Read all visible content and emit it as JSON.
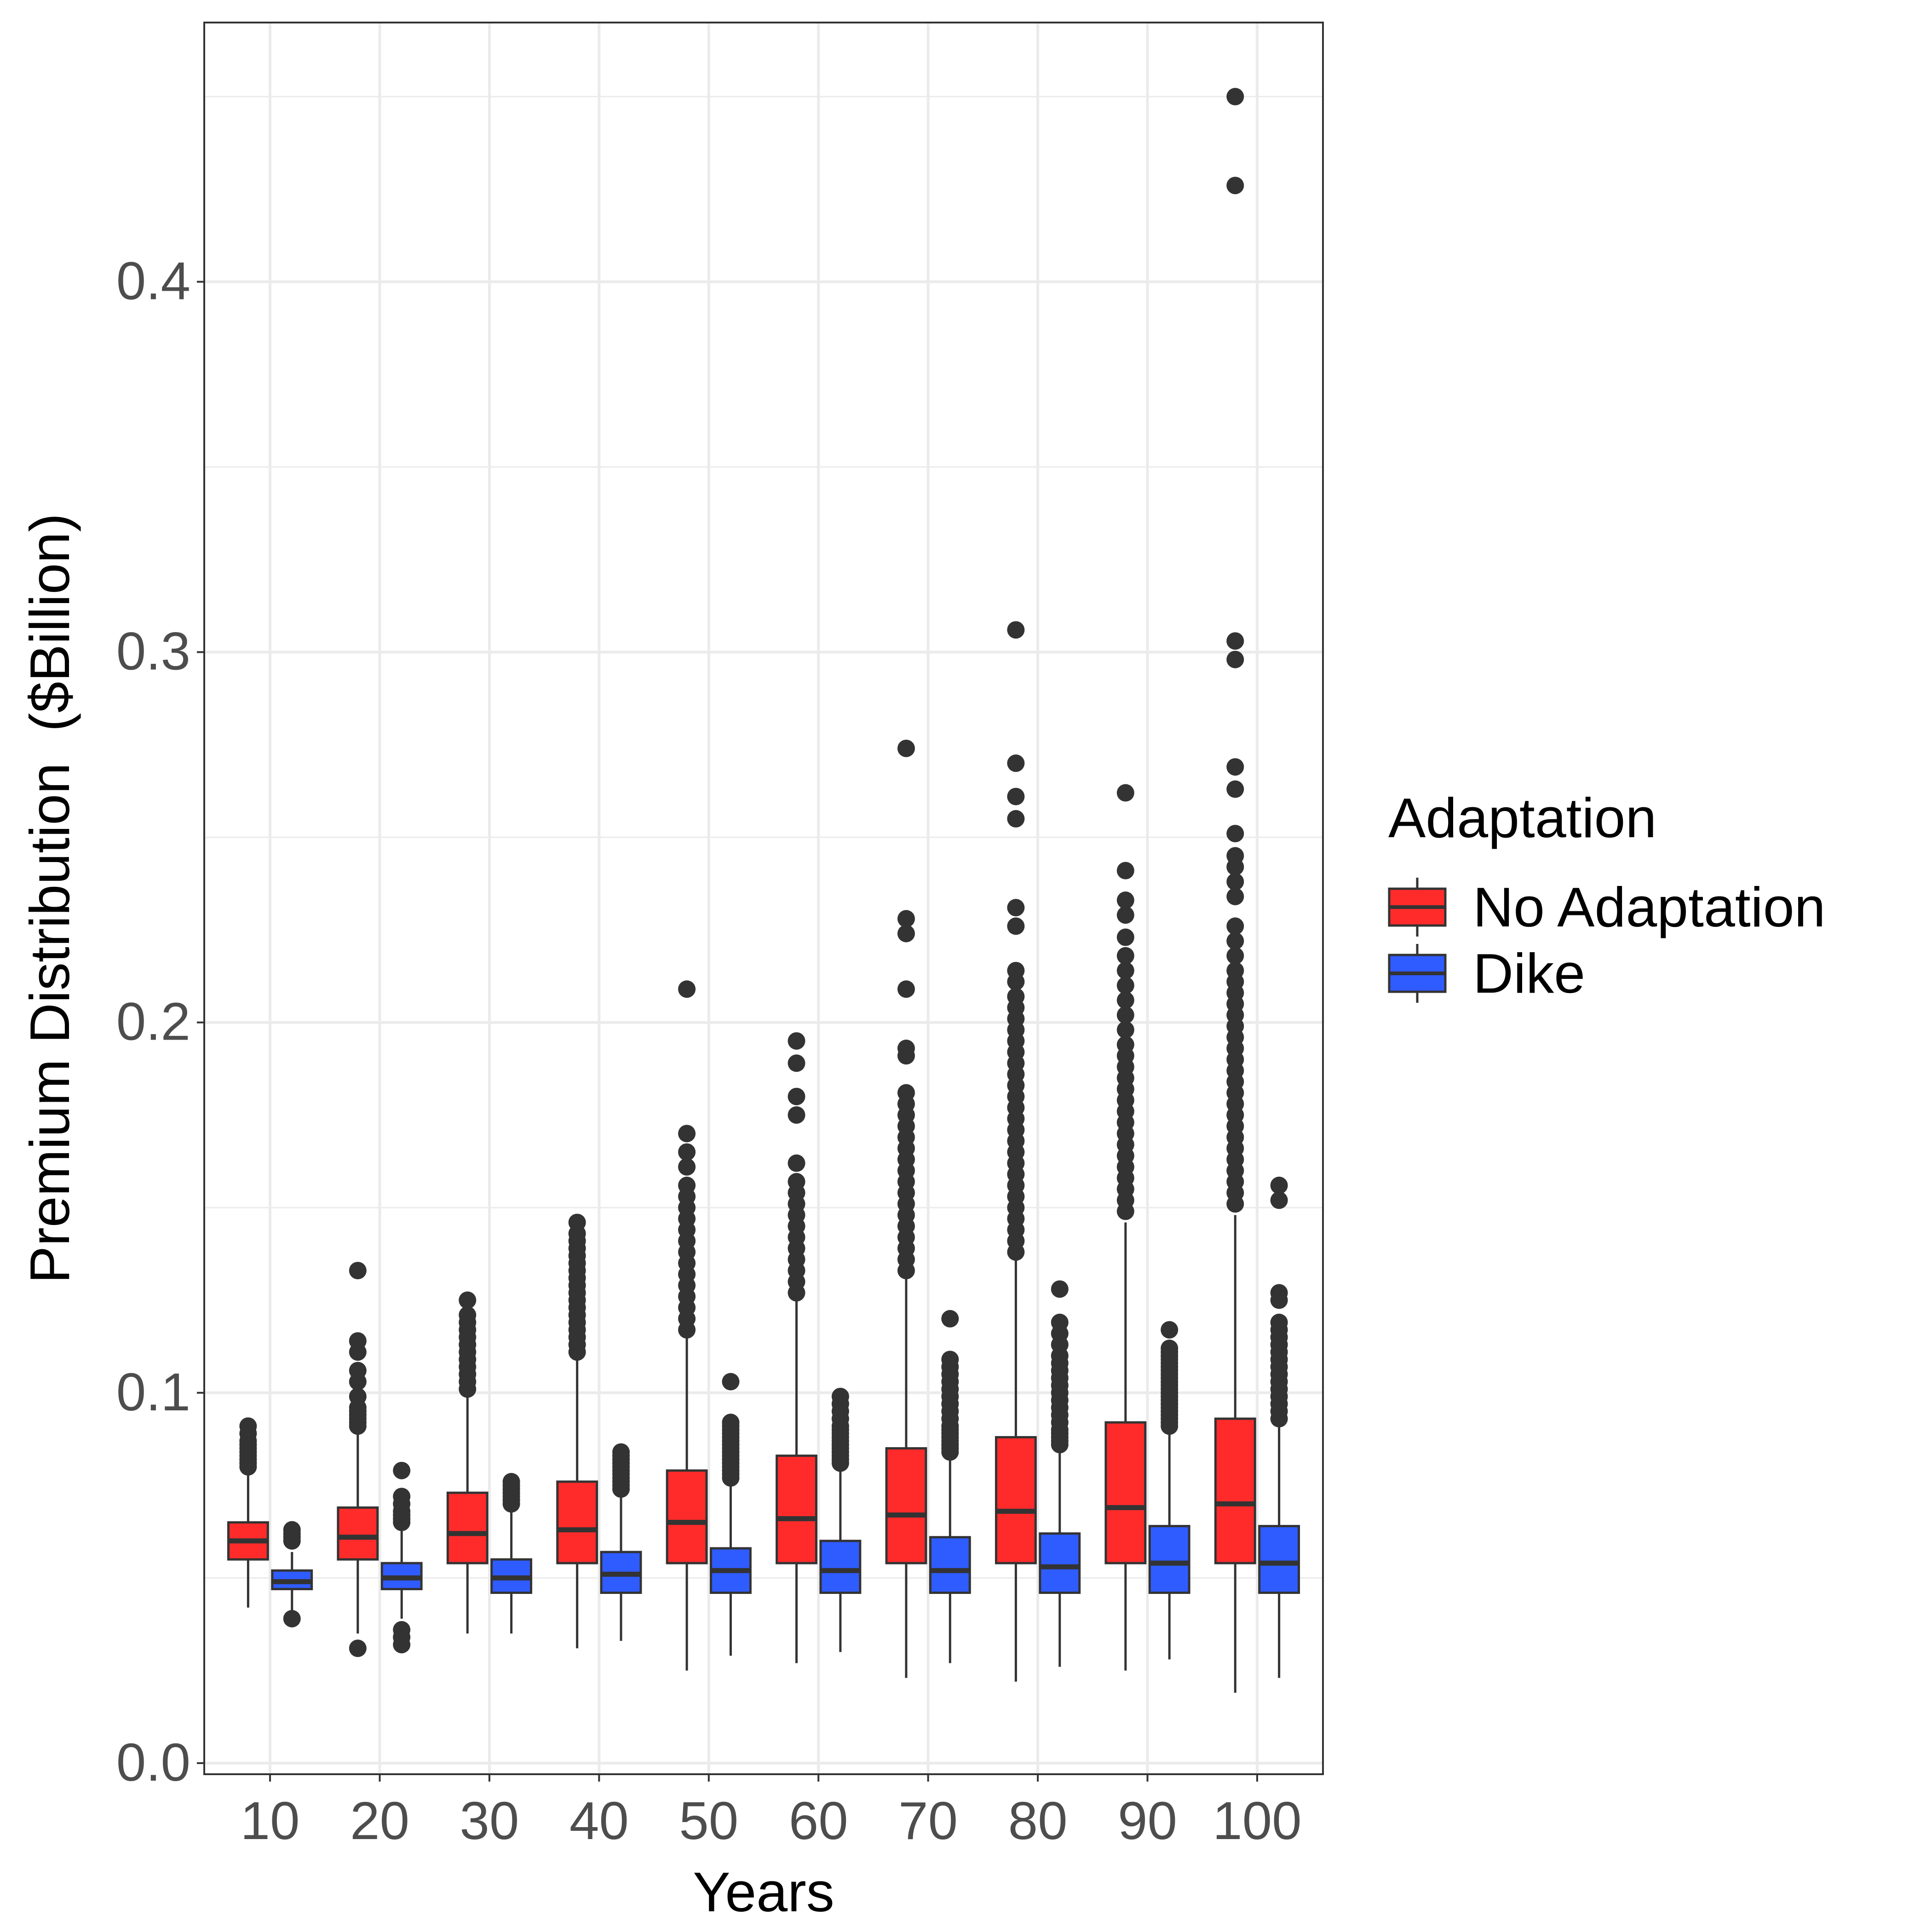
{
  "chart_data": {
    "type": "box",
    "xlabel": "Years",
    "ylabel": "Premium Distribution  ($Billion)",
    "categories": [
      "10",
      "20",
      "30",
      "40",
      "50",
      "60",
      "70",
      "80",
      "90",
      "100"
    ],
    "y_ticks": [
      "0.0",
      "0.1",
      "0.2",
      "0.3",
      "0.4"
    ],
    "ylim": [
      -0.003,
      0.47
    ],
    "grid": true,
    "legend": {
      "title": "Adaptation",
      "position": "right"
    },
    "series": [
      {
        "name": "No Adaptation",
        "color": "#ff2b2b",
        "boxes": [
          {
            "min": 0.042,
            "q1": 0.055,
            "median": 0.06,
            "q3": 0.065,
            "max": 0.079,
            "outliers": [
              0.08,
              0.081,
              0.082,
              0.083,
              0.084,
              0.085,
              0.086,
              0.087,
              0.089,
              0.091
            ]
          },
          {
            "min": 0.035,
            "q1": 0.055,
            "median": 0.061,
            "q3": 0.069,
            "max": 0.09,
            "outliers": [
              0.031,
              0.091,
              0.092,
              0.093,
              0.094,
              0.095,
              0.096,
              0.099,
              0.103,
              0.106,
              0.111,
              0.114,
              0.133
            ]
          },
          {
            "min": 0.035,
            "q1": 0.054,
            "median": 0.062,
            "q3": 0.073,
            "max": 0.1,
            "outliers": [
              0.101,
              0.103,
              0.105,
              0.107,
              0.109,
              0.111,
              0.113,
              0.115,
              0.117,
              0.119,
              0.121,
              0.125
            ]
          },
          {
            "min": 0.031,
            "q1": 0.054,
            "median": 0.063,
            "q3": 0.076,
            "max": 0.11,
            "outliers": [
              0.111,
              0.113,
              0.115,
              0.117,
              0.119,
              0.121,
              0.123,
              0.125,
              0.127,
              0.129,
              0.131,
              0.133,
              0.135,
              0.137,
              0.139,
              0.141,
              0.143,
              0.146
            ]
          },
          {
            "min": 0.025,
            "q1": 0.054,
            "median": 0.065,
            "q3": 0.079,
            "max": 0.116,
            "outliers": [
              0.117,
              0.12,
              0.123,
              0.126,
              0.129,
              0.132,
              0.135,
              0.138,
              0.141,
              0.144,
              0.147,
              0.15,
              0.153,
              0.156,
              0.161,
              0.165,
              0.17,
              0.209
            ]
          },
          {
            "min": 0.027,
            "q1": 0.054,
            "median": 0.066,
            "q3": 0.083,
            "max": 0.125,
            "outliers": [
              0.127,
              0.13,
              0.133,
              0.136,
              0.139,
              0.142,
              0.145,
              0.148,
              0.151,
              0.154,
              0.157,
              0.162,
              0.175,
              0.18,
              0.189,
              0.195
            ]
          },
          {
            "min": 0.023,
            "q1": 0.054,
            "median": 0.067,
            "q3": 0.085,
            "max": 0.131,
            "outliers": [
              0.133,
              0.136,
              0.139,
              0.142,
              0.145,
              0.148,
              0.151,
              0.154,
              0.157,
              0.16,
              0.163,
              0.166,
              0.169,
              0.172,
              0.175,
              0.178,
              0.181,
              0.191,
              0.193,
              0.209,
              0.224,
              0.228,
              0.274
            ]
          },
          {
            "min": 0.022,
            "q1": 0.054,
            "median": 0.068,
            "q3": 0.088,
            "max": 0.136,
            "outliers": [
              0.138,
              0.141,
              0.144,
              0.147,
              0.15,
              0.153,
              0.156,
              0.159,
              0.162,
              0.165,
              0.168,
              0.171,
              0.174,
              0.177,
              0.18,
              0.183,
              0.186,
              0.189,
              0.192,
              0.195,
              0.198,
              0.201,
              0.204,
              0.207,
              0.211,
              0.214,
              0.226,
              0.231,
              0.255,
              0.261,
              0.27,
              0.306
            ]
          },
          {
            "min": 0.025,
            "q1": 0.054,
            "median": 0.069,
            "q3": 0.092,
            "max": 0.146,
            "outliers": [
              0.149,
              0.152,
              0.155,
              0.158,
              0.161,
              0.164,
              0.167,
              0.17,
              0.173,
              0.176,
              0.179,
              0.182,
              0.185,
              0.188,
              0.191,
              0.194,
              0.198,
              0.202,
              0.206,
              0.21,
              0.214,
              0.218,
              0.223,
              0.229,
              0.233,
              0.241,
              0.262
            ]
          },
          {
            "min": 0.019,
            "q1": 0.054,
            "median": 0.07,
            "q3": 0.093,
            "max": 0.148,
            "outliers": [
              0.151,
              0.154,
              0.157,
              0.16,
              0.163,
              0.166,
              0.169,
              0.172,
              0.175,
              0.178,
              0.181,
              0.184,
              0.187,
              0.19,
              0.193,
              0.196,
              0.199,
              0.202,
              0.205,
              0.208,
              0.211,
              0.214,
              0.218,
              0.222,
              0.226,
              0.234,
              0.238,
              0.242,
              0.245,
              0.251,
              0.263,
              0.269,
              0.298,
              0.303,
              0.426,
              0.45
            ]
          }
        ]
      },
      {
        "name": "Dike",
        "color": "#2f5cff",
        "boxes": [
          {
            "min": 0.041,
            "q1": 0.047,
            "median": 0.049,
            "q3": 0.052,
            "max": 0.057,
            "outliers": [
              0.039,
              0.06,
              0.061,
              0.062,
              0.063
            ]
          },
          {
            "min": 0.039,
            "q1": 0.047,
            "median": 0.05,
            "q3": 0.054,
            "max": 0.064,
            "outliers": [
              0.032,
              0.034,
              0.036,
              0.065,
              0.066,
              0.067,
              0.068,
              0.07,
              0.072,
              0.079
            ]
          },
          {
            "min": 0.035,
            "q1": 0.046,
            "median": 0.05,
            "q3": 0.055,
            "max": 0.068,
            "outliers": [
              0.07,
              0.071,
              0.072,
              0.073,
              0.074,
              0.075,
              0.076
            ]
          },
          {
            "min": 0.033,
            "q1": 0.046,
            "median": 0.051,
            "q3": 0.057,
            "max": 0.072,
            "outliers": [
              0.074,
              0.075,
              0.076,
              0.077,
              0.078,
              0.079,
              0.08,
              0.081,
              0.082,
              0.083,
              0.084
            ]
          },
          {
            "min": 0.029,
            "q1": 0.046,
            "median": 0.052,
            "q3": 0.058,
            "max": 0.075,
            "outliers": [
              0.077,
              0.078,
              0.079,
              0.08,
              0.081,
              0.082,
              0.083,
              0.084,
              0.085,
              0.086,
              0.087,
              0.088,
              0.089,
              0.09,
              0.091,
              0.092,
              0.103
            ]
          },
          {
            "min": 0.03,
            "q1": 0.046,
            "median": 0.052,
            "q3": 0.06,
            "max": 0.079,
            "outliers": [
              0.081,
              0.082,
              0.083,
              0.084,
              0.085,
              0.086,
              0.087,
              0.088,
              0.089,
              0.09,
              0.091,
              0.093,
              0.095,
              0.097,
              0.099
            ]
          },
          {
            "min": 0.027,
            "q1": 0.046,
            "median": 0.052,
            "q3": 0.061,
            "max": 0.082,
            "outliers": [
              0.084,
              0.085,
              0.086,
              0.087,
              0.088,
              0.089,
              0.09,
              0.091,
              0.093,
              0.095,
              0.097,
              0.099,
              0.101,
              0.103,
              0.105,
              0.107,
              0.109,
              0.12
            ]
          },
          {
            "min": 0.026,
            "q1": 0.046,
            "median": 0.053,
            "q3": 0.062,
            "max": 0.084,
            "outliers": [
              0.086,
              0.087,
              0.088,
              0.089,
              0.09,
              0.092,
              0.094,
              0.096,
              0.098,
              0.1,
              0.102,
              0.104,
              0.106,
              0.108,
              0.11,
              0.113,
              0.116,
              0.119,
              0.128
            ]
          },
          {
            "min": 0.028,
            "q1": 0.046,
            "median": 0.054,
            "q3": 0.064,
            "max": 0.089,
            "outliers": [
              0.091,
              0.092,
              0.093,
              0.094,
              0.095,
              0.096,
              0.097,
              0.098,
              0.099,
              0.1,
              0.101,
              0.102,
              0.103,
              0.104,
              0.105,
              0.106,
              0.107,
              0.108,
              0.109,
              0.11,
              0.111,
              0.112,
              0.117
            ]
          },
          {
            "min": 0.023,
            "q1": 0.046,
            "median": 0.054,
            "q3": 0.064,
            "max": 0.091,
            "outliers": [
              0.093,
              0.095,
              0.097,
              0.099,
              0.101,
              0.103,
              0.105,
              0.107,
              0.109,
              0.111,
              0.113,
              0.115,
              0.117,
              0.119,
              0.125,
              0.127,
              0.152,
              0.156
            ]
          }
        ]
      }
    ]
  }
}
